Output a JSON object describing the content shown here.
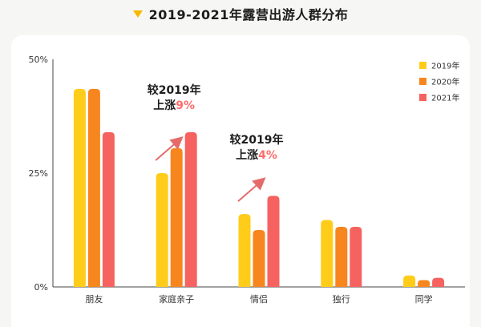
{
  "title": "2019-2021年露营出游人群分布",
  "chart_data": {
    "type": "bar",
    "categories": [
      "朋友",
      "家庭亲子",
      "情侣",
      "独行",
      "同学"
    ],
    "series": [
      {
        "name": "2019年",
        "color": "#ffcc1a",
        "values": [
          43.5,
          25,
          16,
          14.7,
          2.5
        ]
      },
      {
        "name": "2020年",
        "color": "#f7861e",
        "values": [
          43.5,
          30.5,
          12.5,
          13.2,
          1.5
        ]
      },
      {
        "name": "2021年",
        "color": "#f6625f",
        "values": [
          34,
          34,
          20,
          13.2,
          2
        ]
      }
    ],
    "y_ticks": [
      "50%",
      "25%",
      "0%"
    ],
    "ylim": [
      0,
      50
    ],
    "legend_position": "top-right",
    "grid": false
  },
  "annotations": [
    {
      "line1": "较2019年",
      "line2_prefix": "上涨",
      "pct": "9%",
      "category_index": 1
    },
    {
      "line1": "较2019年",
      "line2_prefix": "上涨",
      "pct": "4%",
      "category_index": 2
    }
  ]
}
